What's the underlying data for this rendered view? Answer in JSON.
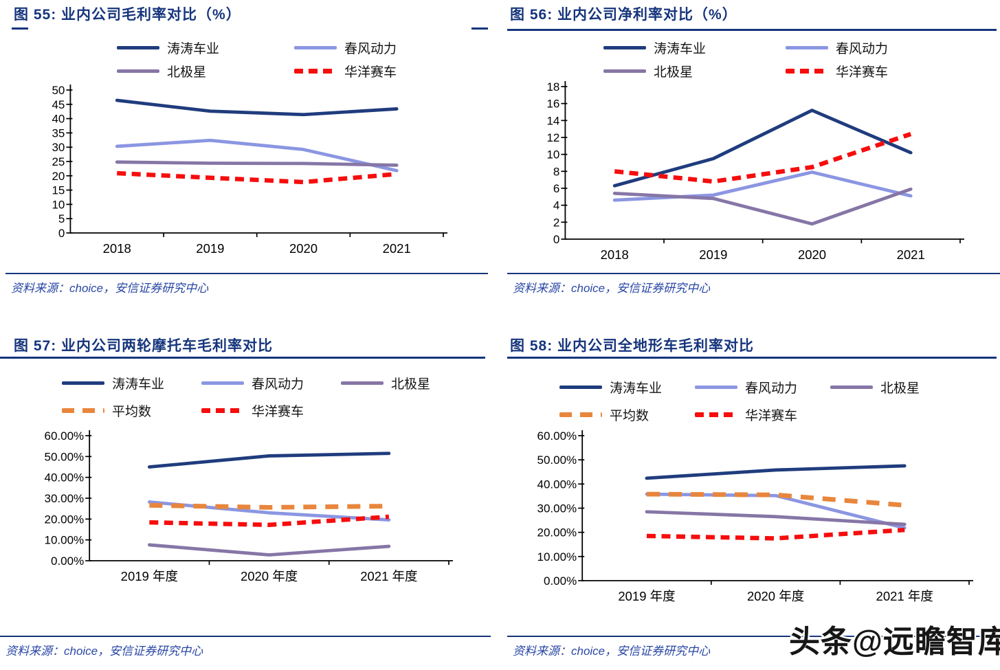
{
  "page": {
    "background": "#ffffff",
    "watermark": "头条@远瞻智库",
    "colors": {
      "title_blue": "#16357c",
      "source_blue": "#2947a5",
      "axis_black": "#000000",
      "navy": "#1f3c7d",
      "periwinkle": "#8b96e2",
      "purple": "#8676a6",
      "red": "#f60d0d",
      "orange": "#e8863c"
    }
  },
  "chart_data": [
    {
      "type": "line",
      "title": "图 55: 业内公司毛利率对比（%）",
      "source": "资料来源：choice，安信证券研究中心",
      "categories": [
        "2018",
        "2019",
        "2020",
        "2021"
      ],
      "xlabel": "",
      "ylabel": "",
      "ylim": [
        0,
        50
      ],
      "ytick_step": 5,
      "ytick_format": "int",
      "grid": false,
      "legend_position": "top",
      "legend_columns": 2,
      "series": [
        {
          "name": "涛涛车业",
          "color": "#1f3c7d",
          "dash": "solid",
          "values": [
            46.4,
            42.6,
            41.4,
            43.4
          ]
        },
        {
          "name": "春风动力",
          "color": "#8b96e2",
          "dash": "solid",
          "values": [
            30.3,
            32.4,
            29.2,
            21.8
          ]
        },
        {
          "name": "北极星",
          "color": "#8676a6",
          "dash": "solid",
          "values": [
            24.8,
            24.4,
            24.3,
            23.7
          ]
        },
        {
          "name": "华洋赛车",
          "color": "#f60d0d",
          "dash": "dash",
          "values": [
            20.9,
            19.3,
            17.8,
            20.6
          ]
        }
      ]
    },
    {
      "type": "line",
      "title": "图 56: 业内公司净利率对比（%）",
      "source": "资料来源：choice，安信证券研究中心",
      "categories": [
        "2018",
        "2019",
        "2020",
        "2021"
      ],
      "xlabel": "",
      "ylabel": "",
      "ylim": [
        0,
        18
      ],
      "ytick_step": 2,
      "ytick_format": "int",
      "grid": false,
      "legend_position": "top",
      "legend_columns": 2,
      "series": [
        {
          "name": "涛涛车业",
          "color": "#1f3c7d",
          "dash": "solid",
          "values": [
            6.3,
            9.5,
            15.2,
            10.2
          ]
        },
        {
          "name": "春风动力",
          "color": "#8b96e2",
          "dash": "solid",
          "values": [
            4.6,
            5.2,
            7.9,
            5.1
          ]
        },
        {
          "name": "北极星",
          "color": "#8676a6",
          "dash": "solid",
          "values": [
            5.4,
            4.8,
            1.8,
            5.9
          ]
        },
        {
          "name": "华洋赛车",
          "color": "#f60d0d",
          "dash": "dash",
          "values": [
            8.0,
            6.8,
            8.5,
            12.4
          ]
        }
      ]
    },
    {
      "type": "line",
      "title": "图 57: 业内公司两轮摩托车毛利率对比",
      "source": "资料来源：choice，安信证券研究中心",
      "categories": [
        "2019 年度",
        "2020 年度",
        "2021 年度"
      ],
      "xlabel": "",
      "ylabel": "",
      "ylim": [
        0,
        60
      ],
      "ytick_step": 10,
      "ytick_format": "percent2",
      "grid": false,
      "legend_position": "top",
      "legend_columns": 3,
      "series": [
        {
          "name": "涛涛车业",
          "color": "#1f3c7d",
          "dash": "solid",
          "values": [
            45.0,
            50.3,
            51.5
          ]
        },
        {
          "name": "春风动力",
          "color": "#8b96e2",
          "dash": "solid",
          "values": [
            28.2,
            23.0,
            19.6
          ]
        },
        {
          "name": "北极星",
          "color": "#8676a6",
          "dash": "solid",
          "values": [
            7.6,
            2.8,
            6.9
          ]
        },
        {
          "name": "平均数",
          "color": "#e8863c",
          "dash": "dash-long",
          "values": [
            26.6,
            25.6,
            26.2
          ]
        },
        {
          "name": "华洋赛车",
          "color": "#f60d0d",
          "dash": "dash",
          "values": [
            18.4,
            17.2,
            21.1
          ]
        }
      ]
    },
    {
      "type": "line",
      "title": "图 58: 业内公司全地形车毛利率对比",
      "source": "资料来源：choice，安信证券研究中心",
      "categories": [
        "2019 年度",
        "2020 年度",
        "2021 年度"
      ],
      "xlabel": "",
      "ylabel": "",
      "ylim": [
        0,
        60
      ],
      "ytick_step": 10,
      "ytick_format": "percent2",
      "grid": false,
      "legend_position": "top",
      "legend_columns": 3,
      "series": [
        {
          "name": "涛涛车业",
          "color": "#1f3c7d",
          "dash": "solid",
          "values": [
            42.4,
            45.8,
            47.5
          ]
        },
        {
          "name": "春风动力",
          "color": "#8b96e2",
          "dash": "solid",
          "values": [
            35.8,
            35.2,
            21.8
          ]
        },
        {
          "name": "北极星",
          "color": "#8676a6",
          "dash": "solid",
          "values": [
            28.5,
            26.5,
            23.3
          ]
        },
        {
          "name": "平均数",
          "color": "#e8863c",
          "dash": "dash-long",
          "values": [
            35.8,
            35.5,
            31.2
          ]
        },
        {
          "name": "华洋赛车",
          "color": "#f60d0d",
          "dash": "dash",
          "values": [
            18.5,
            17.5,
            21.0
          ]
        }
      ]
    }
  ]
}
